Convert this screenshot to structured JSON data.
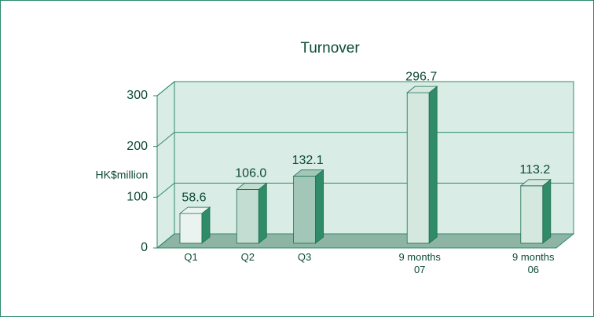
{
  "chart_data": {
    "type": "bar3d",
    "title": "Turnover",
    "y_label": "HK$million",
    "categories": [
      "Q1",
      "Q2",
      "Q3",
      null,
      "9 months 07",
      null,
      "9 months 06"
    ],
    "values": [
      58.6,
      106.0,
      132.1,
      null,
      296.7,
      null,
      113.2
    ],
    "value_labels": [
      "58.6",
      "106.0",
      "132.1",
      null,
      "296.7",
      null,
      "113.2"
    ],
    "colors": [
      "#eaf3ef",
      "#c4ddd3",
      "#a2c7b8",
      null,
      "#d4e8e0",
      null,
      "#d4e8e0"
    ],
    "side_color": "#2f8b68",
    "ylim": [
      0,
      300
    ],
    "yticks": [
      0,
      100,
      200,
      300
    ],
    "grid": true
  }
}
